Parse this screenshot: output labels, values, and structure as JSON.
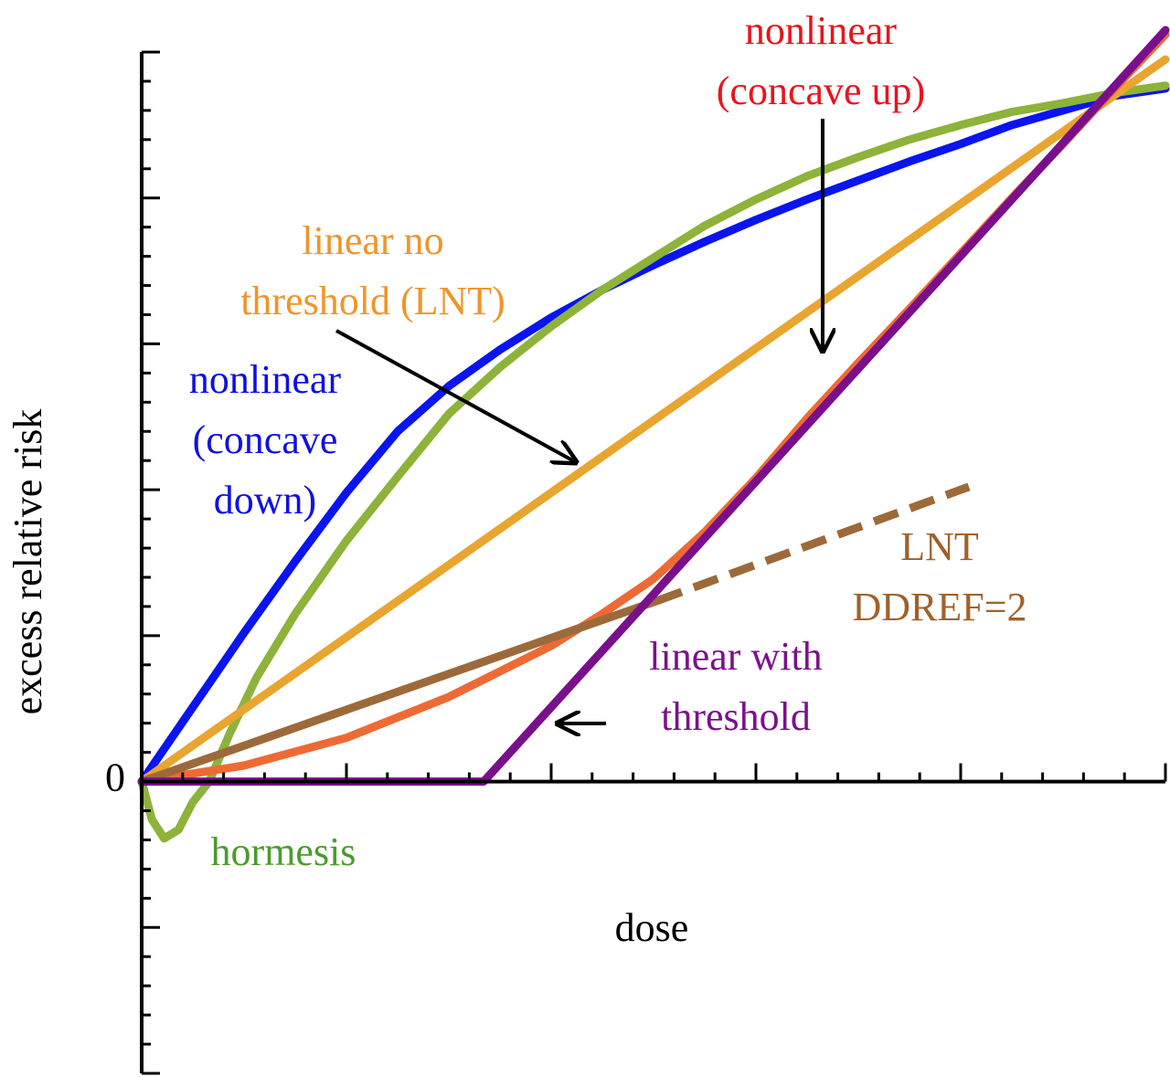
{
  "chart_data": {
    "type": "line",
    "x_label": "dose",
    "y_label": "excess relative risk",
    "xlim": [
      0,
      5
    ],
    "ylim": [
      -2,
      5
    ],
    "yticks": [
      0
    ],
    "x_unlabeled_ticks": {
      "major": [
        0,
        1,
        2,
        3,
        4,
        5
      ],
      "minor": [
        0.2,
        0.4,
        0.6,
        0.8,
        1.2,
        1.4,
        1.6,
        1.8,
        2.2,
        2.4,
        2.6,
        2.8,
        3.2,
        3.4,
        3.6,
        3.8,
        4.2,
        4.4,
        4.6,
        4.8
      ]
    },
    "y_unlabeled_ticks": {
      "major": [
        -2,
        -1,
        1,
        2,
        3,
        4,
        5
      ],
      "minor": [
        -1.8,
        -1.6,
        -1.4,
        -1.2,
        -0.8,
        -0.6,
        -0.4,
        -0.2,
        0.2,
        0.4,
        0.6,
        0.8,
        1.2,
        1.4,
        1.6,
        1.8,
        2.2,
        2.4,
        2.6,
        2.8,
        3.2,
        3.4,
        3.6,
        3.8,
        4.2,
        4.4,
        4.6,
        4.8
      ]
    },
    "series": [
      {
        "color": "#0a14f0",
        "dashed": false,
        "x": [
          0,
          0.25,
          0.5,
          0.75,
          1,
          1.25,
          1.5,
          1.75,
          2,
          2.25,
          2.5,
          2.75,
          3,
          3.25,
          3.5,
          3.75,
          4,
          4.25,
          4.5,
          4.75,
          5
        ],
        "values": [
          0,
          0.51,
          1.02,
          1.51,
          1.98,
          2.4,
          2.71,
          2.96,
          3.18,
          3.37,
          3.54,
          3.7,
          3.85,
          3.99,
          4.12,
          4.25,
          4.37,
          4.5,
          4.6,
          4.7,
          4.75
        ]
      },
      {
        "color": "#8db33a",
        "dashed": false,
        "x": [
          0,
          0.05,
          0.11,
          0.18,
          0.25,
          0.33,
          0.43,
          0.56,
          0.75,
          1,
          1.25,
          1.5,
          1.75,
          2,
          2.25,
          2.5,
          2.75,
          3,
          3.25,
          3.5,
          3.75,
          4,
          4.25,
          4.5,
          4.75,
          5
        ],
        "values": [
          0,
          -0.26,
          -0.39,
          -0.33,
          -0.14,
          0,
          0.33,
          0.71,
          1.15,
          1.65,
          2.09,
          2.52,
          2.84,
          3.12,
          3.37,
          3.59,
          3.81,
          3.99,
          4.15,
          4.28,
          4.4,
          4.5,
          4.59,
          4.65,
          4.72,
          4.77
        ]
      },
      {
        "color": "#e8a530",
        "dashed": false,
        "x": [
          0,
          5
        ],
        "values": [
          0,
          4.95
        ]
      },
      {
        "color": "#ee6a35",
        "dashed": false,
        "x": [
          0,
          0.5,
          1,
          1.5,
          2,
          2.25,
          2.5,
          2.75,
          3,
          3.25,
          3.5,
          3.75,
          4,
          4.25,
          4.5,
          4.75,
          5
        ],
        "values": [
          0,
          0.11,
          0.3,
          0.58,
          0.93,
          1.15,
          1.39,
          1.71,
          2.08,
          2.49,
          2.87,
          3.24,
          3.62,
          4,
          4.37,
          4.75,
          5.12
        ]
      },
      {
        "color": "#9c6a3a",
        "dashed": false,
        "x": [
          0,
          2.52
        ],
        "values": [
          0,
          1.24
        ]
      },
      {
        "color": "#9c6a3a",
        "dashed": true,
        "x": [
          2.52,
          4.04
        ],
        "values": [
          1.24,
          2.02
        ]
      },
      {
        "color": "#7a0f8c",
        "dashed": false,
        "x": [
          0,
          1.67,
          5
        ],
        "values": [
          0,
          0,
          5.15
        ]
      }
    ],
    "annotations": [
      {
        "lines": [
          "nonlinear",
          "(concave up)"
        ],
        "color": "#e8141e"
      },
      {
        "lines": [
          "linear no",
          "threshold (LNT)"
        ],
        "color": "#f0952a"
      },
      {
        "lines": [
          "nonlinear",
          "(concave",
          "down)"
        ],
        "color": "#1010e0"
      },
      {
        "lines": [
          "LNT",
          "DDREF=2"
        ],
        "color": "#a0612a"
      },
      {
        "lines": [
          "linear with",
          "threshold"
        ],
        "color": "#7b128a"
      },
      {
        "lines": [
          "hormesis"
        ],
        "color": "#4a9c2a"
      }
    ]
  }
}
